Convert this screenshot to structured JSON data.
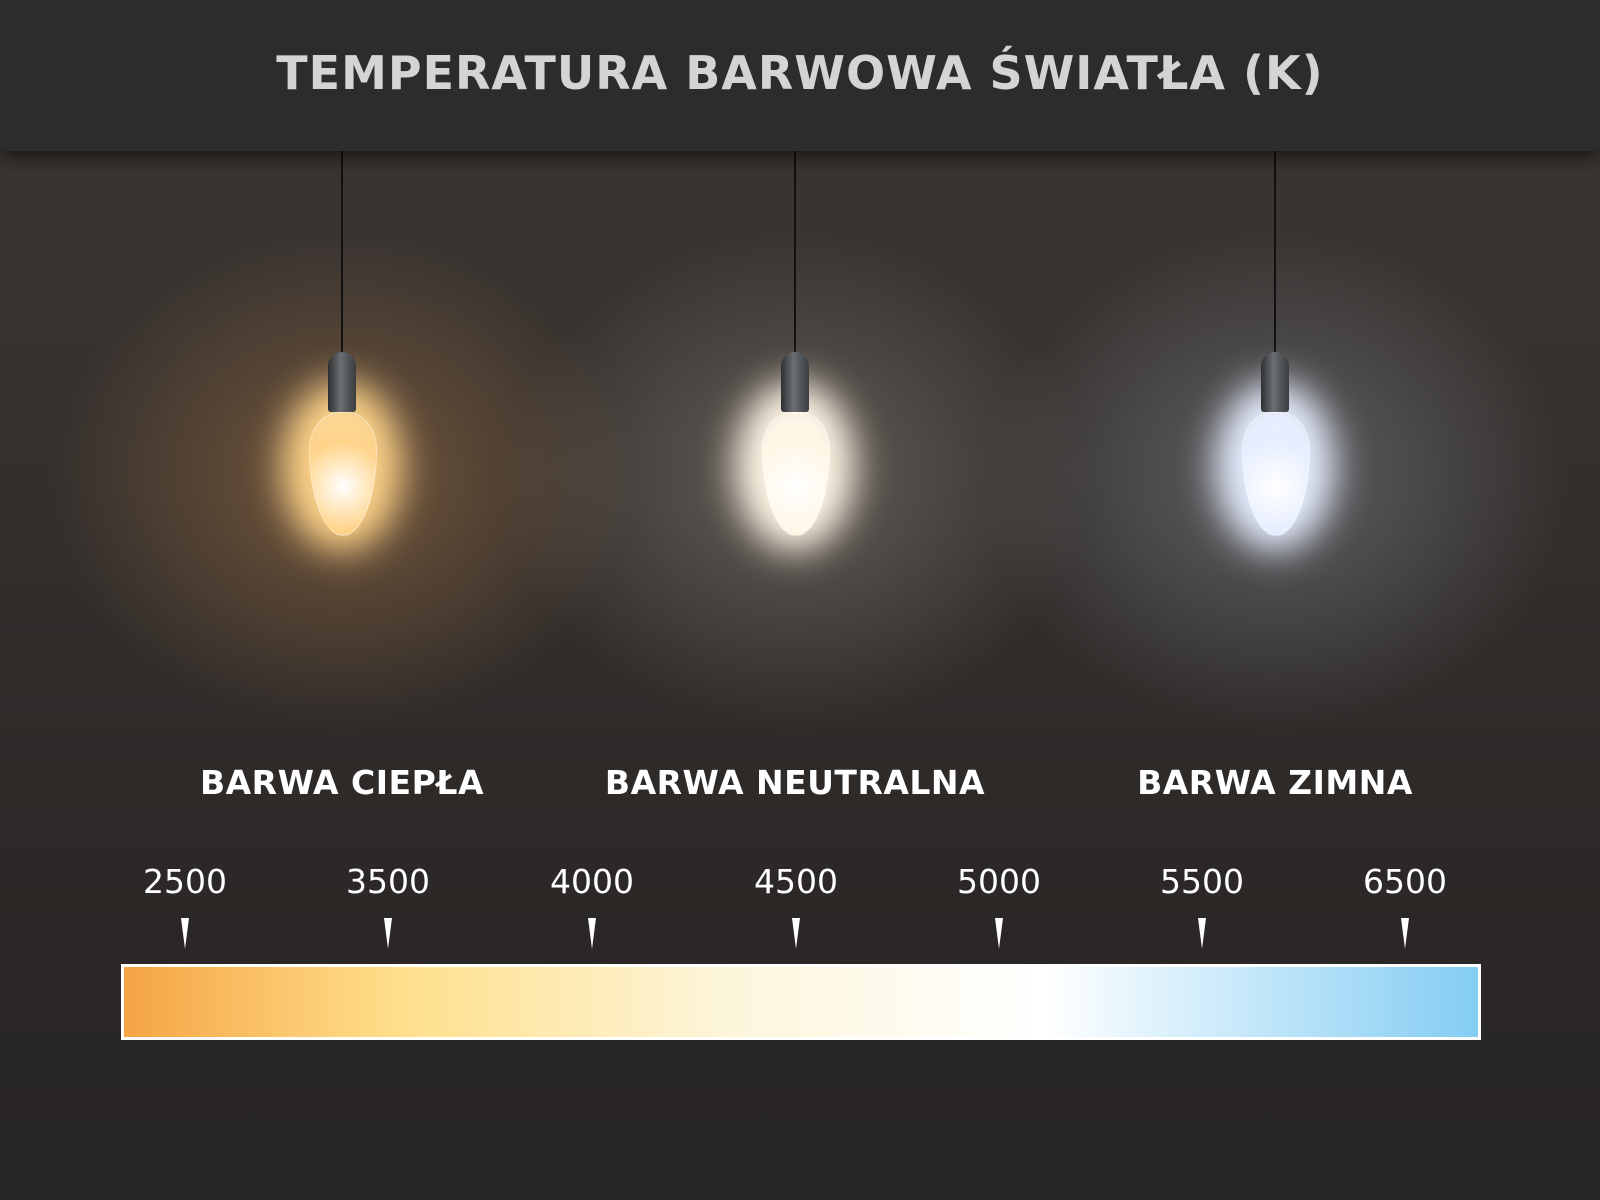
{
  "title": "TEMPERATURA BARWOWA ŚWIATŁA (K)",
  "categories": [
    {
      "label": "BARWA CIEPŁA",
      "glow_color": "#ffd48a"
    },
    {
      "label": "BARWA NEUTRALNA",
      "glow_color": "#fff6e6"
    },
    {
      "label": "BARWA ZIMNA",
      "glow_color": "#e6eeff"
    }
  ],
  "scale": {
    "unit": "K",
    "ticks": [
      "2500",
      "3500",
      "4000",
      "4500",
      "5000",
      "5500",
      "6500"
    ],
    "gradient_colors": [
      "#f5a444",
      "#ffdf8a",
      "#fdf6dc",
      "#ffffff",
      "#84cdf3"
    ]
  }
}
